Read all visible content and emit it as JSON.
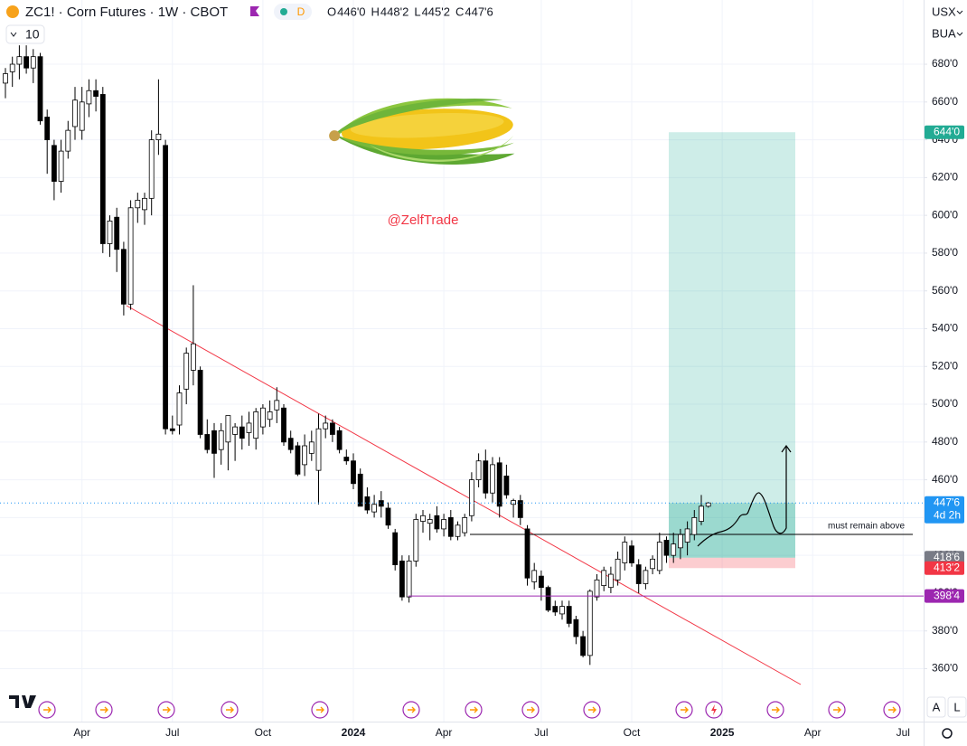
{
  "chart_data": {
    "type": "candlestick",
    "title": "ZC1! · Corn Futures · 1W · CBOT",
    "session_badge": "D",
    "ohlc_header": [
      {
        "key": "O",
        "value": "446'0"
      },
      {
        "key": "H",
        "value": "448'2"
      },
      {
        "key": "L",
        "value": "445'2"
      },
      {
        "key": "C",
        "value": "447'6"
      }
    ],
    "indicator_count": "10",
    "currency": "USX",
    "unit": "BUA",
    "watermark": "@ZelfTrade",
    "annotation": "must remain above",
    "scale_buttons": [
      "A",
      "L"
    ],
    "categories": [
      null,
      null,
      null,
      null,
      null,
      null,
      null,
      null,
      null,
      null,
      null,
      "Apr",
      null,
      null,
      null,
      null,
      null,
      null,
      null,
      null,
      null,
      null,
      null,
      null,
      "Jul",
      null,
      null,
      null,
      null,
      null,
      null,
      null,
      null,
      null,
      null,
      null,
      null,
      "Oct",
      null,
      null,
      null,
      null,
      null,
      null,
      null,
      null,
      null,
      null,
      null,
      null,
      "2024",
      null,
      null,
      null,
      null,
      null,
      null,
      null,
      null,
      null,
      null,
      null,
      null,
      "Apr",
      null,
      null,
      null,
      null,
      null,
      null,
      null,
      null,
      null,
      null,
      null,
      null,
      null,
      "Jul",
      null,
      null,
      null,
      null,
      null,
      null,
      null,
      null,
      null,
      null,
      null,
      null,
      "Oct",
      null,
      null,
      null,
      null,
      null,
      null,
      null,
      null,
      null,
      null,
      null,
      null,
      "2025",
      null,
      null,
      null,
      null,
      null,
      null,
      null,
      null,
      null,
      null,
      null,
      null,
      "Apr",
      null,
      null,
      null,
      null,
      null,
      null,
      null,
      null,
      null,
      null,
      null,
      null,
      "Jul",
      null,
      null,
      null
    ],
    "open": [
      670,
      676,
      680,
      684,
      678,
      684,
      652,
      637,
      618,
      634,
      647,
      645,
      659,
      666,
      664,
      585,
      599,
      582,
      553,
      604,
      603,
      609,
      640,
      637,
      487,
      489,
      508,
      518,
      518,
      484,
      486,
      476,
      480,
      484,
      488,
      485,
      482,
      488,
      492,
      497,
      498,
      482,
      478,
      468,
      474,
      465,
      487,
      490,
      486,
      472,
      470,
      463,
      451,
      443,
      449,
      445,
      432,
      417,
      398,
      417,
      438,
      437,
      441,
      434,
      440,
      430,
      432,
      441,
      460,
      470,
      453,
      469,
      462,
      447,
      449,
      434,
      406,
      409,
      403,
      393,
      389,
      393,
      386,
      377,
      367,
      398,
      404,
      403,
      407,
      416,
      425,
      415,
      405,
      413,
      412,
      428,
      420,
      424,
      427,
      431,
      438,
      446,
      null,
      null,
      null,
      null,
      null,
      null,
      null,
      null,
      null,
      null,
      null,
      null,
      null,
      null,
      null,
      null,
      null,
      null,
      null,
      null,
      null,
      null,
      null,
      null,
      null,
      null,
      null,
      null,
      null,
      null,
      null
    ],
    "high": [
      678,
      684,
      690,
      690,
      688,
      686,
      656,
      640,
      640,
      650,
      668,
      668,
      672,
      672,
      668,
      600,
      604,
      586,
      608,
      612,
      612,
      645,
      672,
      640,
      494,
      510,
      530,
      563,
      520,
      492,
      490,
      490,
      494,
      490,
      494,
      496,
      498,
      500,
      502,
      509,
      500,
      486,
      480,
      484,
      486,
      495,
      494,
      492,
      488,
      476,
      474,
      466,
      456,
      452,
      454,
      448,
      434,
      420,
      420,
      442,
      444,
      442,
      446,
      442,
      444,
      438,
      442,
      464,
      474,
      476,
      472,
      472,
      468,
      450,
      452,
      436,
      416,
      412,
      404,
      396,
      396,
      396,
      388,
      380,
      402,
      410,
      414,
      414,
      422,
      430,
      428,
      418,
      414,
      420,
      432,
      430,
      432,
      434,
      438,
      444,
      452,
      448.25,
      null,
      null,
      null,
      null,
      null,
      null,
      null,
      null,
      null,
      null,
      null,
      null,
      null,
      null,
      null,
      null,
      null,
      null,
      null,
      null,
      null,
      null,
      null,
      null,
      null,
      null,
      null,
      null,
      null,
      null,
      null
    ],
    "low": [
      662,
      668,
      672,
      675,
      670,
      648,
      622,
      608,
      612,
      630,
      640,
      640,
      652,
      655,
      580,
      578,
      570,
      547,
      550,
      596,
      595,
      600,
      632,
      484,
      484,
      484,
      500,
      510,
      482,
      474,
      461,
      468,
      465,
      470,
      476,
      478,
      476,
      484,
      488,
      490,
      478,
      474,
      462,
      462,
      470,
      447,
      482,
      480,
      474,
      468,
      455,
      446,
      442,
      440,
      440,
      434,
      412,
      396,
      395,
      414,
      432,
      428,
      432,
      430,
      428,
      428,
      430,
      438,
      456,
      450,
      448,
      440,
      450,
      440,
      436,
      404,
      402,
      396,
      390,
      388,
      386,
      382,
      373,
      366,
      362,
      396,
      401,
      400,
      404,
      412,
      414,
      400,
      402,
      410,
      410,
      416,
      416,
      418,
      420,
      428,
      436,
      445.25,
      null,
      null,
      null,
      null,
      null,
      null,
      null,
      null,
      null,
      null,
      null,
      null,
      null,
      null,
      null,
      null,
      null,
      null,
      null,
      null,
      null,
      null,
      null,
      null,
      null,
      null,
      null,
      null,
      null,
      null,
      null
    ],
    "close": [
      675,
      680,
      684,
      678,
      684,
      650,
      640,
      618,
      634,
      645,
      661,
      660,
      666,
      663,
      585,
      597,
      582,
      553,
      604,
      608,
      609,
      640,
      643,
      487,
      486,
      506,
      527,
      532,
      484,
      476,
      474,
      486,
      494,
      488,
      482,
      490,
      496,
      498,
      496,
      502,
      480,
      476,
      463,
      478,
      480,
      487,
      490,
      484,
      476,
      470,
      458,
      446,
      444,
      447,
      446,
      436,
      415,
      398,
      417,
      439,
      441,
      439,
      434,
      439,
      430,
      436,
      440,
      460,
      470,
      453,
      468,
      446,
      452,
      449,
      440,
      408,
      412,
      403,
      391,
      390,
      393,
      384,
      377,
      367,
      401,
      407,
      412,
      410,
      418,
      427,
      416,
      405,
      412,
      418,
      427,
      420,
      426,
      431,
      434,
      440,
      446,
      447.75,
      null,
      null,
      null,
      null,
      null,
      null,
      null,
      null,
      null,
      null,
      null,
      null,
      null,
      null,
      null,
      null,
      null,
      null,
      null,
      null,
      null,
      null,
      null,
      null,
      null,
      null,
      null,
      null,
      null,
      null,
      null
    ],
    "up_color": "#ffffff",
    "down_color": "#000000",
    "ylim": [
      332,
      714
    ],
    "yticks": [
      {
        "value": 360,
        "label": "360'0"
      },
      {
        "value": 380,
        "label": "380'0"
      },
      {
        "value": 400,
        "label": "400'0"
      },
      {
        "value": 420,
        "label": "420'0"
      },
      {
        "value": 440,
        "label": "440'0"
      },
      {
        "value": 460,
        "label": "460'0"
      },
      {
        "value": 480,
        "label": "480'0"
      },
      {
        "value": 500,
        "label": "500'0"
      },
      {
        "value": 520,
        "label": "520'0"
      },
      {
        "value": 540,
        "label": "540'0"
      },
      {
        "value": 560,
        "label": "560'0"
      },
      {
        "value": 580,
        "label": "580'0"
      },
      {
        "value": 600,
        "label": "600'0"
      },
      {
        "value": 620,
        "label": "620'0"
      },
      {
        "value": 640,
        "label": "640'0"
      },
      {
        "value": 660,
        "label": "660'0"
      },
      {
        "value": 680,
        "label": "680'0"
      }
    ],
    "grid": true,
    "price_labels": [
      {
        "value": 644,
        "label": "644'0",
        "color": "#22ab94"
      },
      {
        "value": 447.75,
        "label": "447'6",
        "color": "#2196f3",
        "countdown": "4d 2h"
      },
      {
        "value": 418.75,
        "label": "418'6",
        "color": "#787b86"
      },
      {
        "value": 413.25,
        "label": "413'2",
        "color": "#f23645"
      },
      {
        "value": 398.5,
        "label": "398'4",
        "color": "#9c27b0"
      }
    ]
  }
}
